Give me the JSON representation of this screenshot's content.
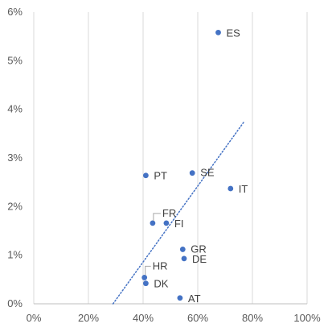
{
  "chart_data": {
    "type": "scatter",
    "title": "",
    "xlabel": "",
    "ylabel": "",
    "xlim": [
      0,
      100
    ],
    "ylim": [
      0,
      6
    ],
    "x_ticks": [
      "0%",
      "20%",
      "40%",
      "60%",
      "80%",
      "100%"
    ],
    "y_ticks": [
      "0%",
      "1%",
      "2%",
      "3%",
      "4%",
      "5%",
      "6%"
    ],
    "grid": "vertical",
    "point_color": "#4472c4",
    "trendline": {
      "style": "dotted",
      "color": "#4472c4",
      "x": [
        29,
        77
      ],
      "y": [
        0,
        3.75
      ]
    },
    "points": [
      {
        "label": "ES",
        "x": 67.5,
        "y": 5.58
      },
      {
        "label": "SE",
        "x": 58,
        "y": 2.69
      },
      {
        "label": "PT",
        "x": 41,
        "y": 2.64
      },
      {
        "label": "IT",
        "x": 72,
        "y": 2.37
      },
      {
        "label": "FR",
        "x": 43.5,
        "y": 1.66
      },
      {
        "label": "FI",
        "x": 48.5,
        "y": 1.66
      },
      {
        "label": "GR",
        "x": 54.5,
        "y": 1.12
      },
      {
        "label": "DE",
        "x": 55,
        "y": 0.93
      },
      {
        "label": "HR",
        "x": 40.5,
        "y": 0.54
      },
      {
        "label": "DK",
        "x": 41,
        "y": 0.42
      },
      {
        "label": "AT",
        "x": 53.5,
        "y": 0.12
      }
    ]
  }
}
